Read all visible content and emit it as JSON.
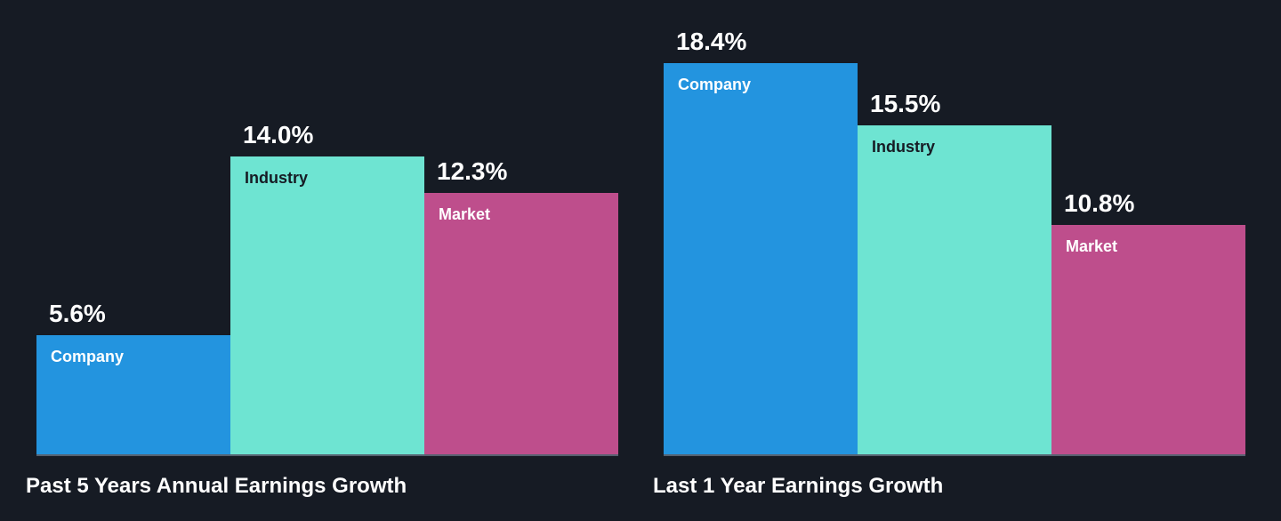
{
  "style": {
    "background": "#161b24",
    "bar_colors": [
      "#2394df",
      "#6ee4d2",
      "#be4e8c"
    ],
    "bar_label_colors": [
      "#ffffff",
      "#161b24",
      "#ffffff"
    ],
    "value_label_color": "#ffffff",
    "title_color": "#ffffff",
    "baseline_color": "#566170"
  },
  "chart_data": [
    {
      "type": "bar",
      "title": "Past 5 Years Annual Earnings Growth",
      "categories": [
        "Company",
        "Industry",
        "Market"
      ],
      "values": [
        5.6,
        14.0,
        12.3
      ],
      "value_labels": [
        "5.6%",
        "14.0%",
        "12.3%"
      ],
      "unit": "%",
      "ylim": [
        0,
        19
      ],
      "grid": false,
      "legend": "none"
    },
    {
      "type": "bar",
      "title": "Last 1 Year Earnings Growth",
      "categories": [
        "Company",
        "Industry",
        "Market"
      ],
      "values": [
        18.4,
        15.5,
        10.8
      ],
      "value_labels": [
        "18.4%",
        "15.5%",
        "10.8%"
      ],
      "unit": "%",
      "ylim": [
        0,
        19
      ],
      "grid": false,
      "legend": "none"
    }
  ]
}
